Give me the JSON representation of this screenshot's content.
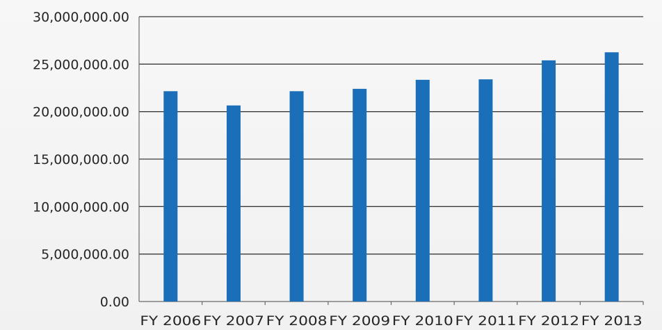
{
  "chart_data": {
    "type": "bar",
    "categories": [
      "FY 2006",
      "FY 2007",
      "FY 2008",
      "FY 2009",
      "FY 2010",
      "FY 2011",
      "FY 2012",
      "FY 2013"
    ],
    "values": [
      22150000,
      20650000,
      22150000,
      22400000,
      23350000,
      23400000,
      25400000,
      26250000
    ],
    "title": "",
    "xlabel": "",
    "ylabel": "",
    "ylim": [
      0,
      30000000
    ],
    "yticks": [
      0,
      5000000,
      10000000,
      15000000,
      20000000,
      25000000,
      30000000
    ],
    "ytick_labels": [
      "0.00",
      "5,000,000.00",
      "10,000,000.00",
      "15,000,000.00",
      "20,000,000.00",
      "25,000,000.00",
      "30,000,000.00"
    ],
    "grid": true,
    "legend": "none",
    "bar_color": "#1a6fb8"
  }
}
